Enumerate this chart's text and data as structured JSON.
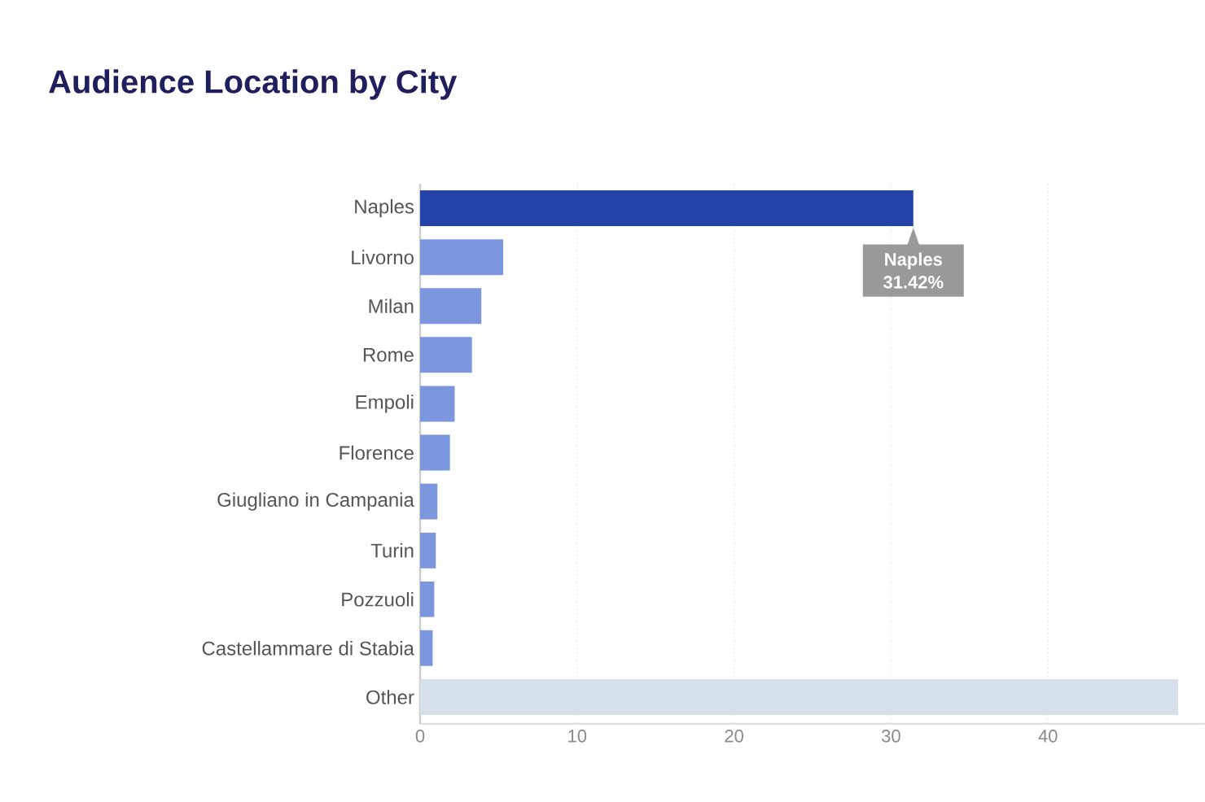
{
  "chart_data": {
    "type": "bar",
    "orientation": "horizontal",
    "title": "Audience Location by City",
    "categories": [
      "Naples",
      "Livorno",
      "Milan",
      "Rome",
      "Empoli",
      "Florence",
      "Giugliano in Campania",
      "Turin",
      "Pozzuoli",
      "Castellammare di Stabia",
      "Other"
    ],
    "values": [
      31.42,
      5.3,
      3.9,
      3.3,
      2.2,
      1.9,
      1.1,
      1.0,
      0.9,
      0.8,
      48.3
    ],
    "colors": [
      "#2442a8",
      "#7b96dc",
      "#7b96dc",
      "#7b96dc",
      "#7b96dc",
      "#7b96dc",
      "#7b96dc",
      "#7b96dc",
      "#7b96dc",
      "#7b96dc",
      "#d6e0ea"
    ],
    "xlim": [
      0,
      50
    ],
    "xticks": [
      0,
      10,
      20,
      30,
      40
    ],
    "grid": "x",
    "annotations": [
      "Naples 31.42%"
    ]
  }
}
